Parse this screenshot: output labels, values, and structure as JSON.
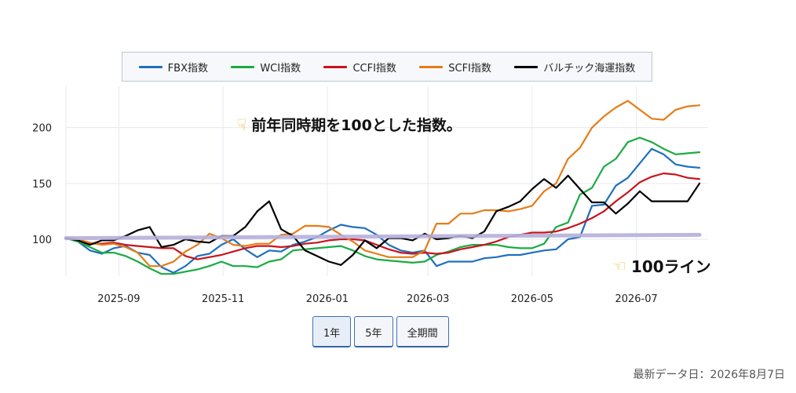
{
  "legend": {
    "items": [
      {
        "label": "FBX指数",
        "color": "#1f6fbf"
      },
      {
        "label": "WCI指数",
        "color": "#1aab43"
      },
      {
        "label": "CCFI指数",
        "color": "#c8141c"
      },
      {
        "label": "SCFI指数",
        "color": "#e57c16"
      },
      {
        "label": "バルチック海運指数",
        "color": "#000000"
      }
    ]
  },
  "annotations": {
    "top_text": "前年同時期を100とした指数。",
    "bottom_text": "100ライン",
    "hand_down_icon": "pointing-down-hand-icon",
    "hand_left_icon": "pointing-left-hand-icon"
  },
  "range_buttons": [
    {
      "label": "1年",
      "active": true
    },
    {
      "label": "5年",
      "active": false
    },
    {
      "label": "全期間",
      "active": false
    }
  ],
  "footer": {
    "updated_label": "最新データ日：2026年8月7日"
  },
  "chart_data": {
    "type": "line",
    "title": "",
    "xlabel": "",
    "ylabel": "",
    "x_start": "2025-08-01",
    "x_end": "2026-08-12",
    "xticks": [
      {
        "date": "2025-09-01",
        "label": "2025-09"
      },
      {
        "date": "2025-11-01",
        "label": "2025-11"
      },
      {
        "date": "2026-01-01",
        "label": "2026-01"
      },
      {
        "date": "2026-03-01",
        "label": "2026-03"
      },
      {
        "date": "2026-05-01",
        "label": "2026-05"
      },
      {
        "date": "2026-07-01",
        "label": "2026-07"
      }
    ],
    "yticks": [
      100,
      150,
      200
    ],
    "ylim": [
      67,
      237
    ],
    "grid": true,
    "legend_position": "top",
    "reference_line": {
      "y_start": 101,
      "y_end": 104,
      "color": "#b6b0dc"
    },
    "x": [
      "2025-08-01",
      "2025-08-08",
      "2025-08-15",
      "2025-08-22",
      "2025-08-29",
      "2025-09-05",
      "2025-09-12",
      "2025-09-19",
      "2025-09-26",
      "2025-10-03",
      "2025-10-10",
      "2025-10-17",
      "2025-10-24",
      "2025-10-31",
      "2025-11-07",
      "2025-11-14",
      "2025-11-21",
      "2025-11-28",
      "2025-12-05",
      "2025-12-12",
      "2025-12-19",
      "2025-12-26",
      "2026-01-02",
      "2026-01-09",
      "2026-01-16",
      "2026-01-23",
      "2026-01-30",
      "2026-02-06",
      "2026-02-13",
      "2026-02-20",
      "2026-02-27",
      "2026-03-06",
      "2026-03-13",
      "2026-03-20",
      "2026-03-27",
      "2026-04-03",
      "2026-04-10",
      "2026-04-17",
      "2026-04-24",
      "2026-05-01",
      "2026-05-08",
      "2026-05-15",
      "2026-05-22",
      "2026-05-29",
      "2026-06-05",
      "2026-06-12",
      "2026-06-19",
      "2026-06-26",
      "2026-07-03",
      "2026-07-10",
      "2026-07-17",
      "2026-07-24",
      "2026-07-31",
      "2026-08-07"
    ],
    "series": [
      {
        "name": "FBX指数",
        "color": "#1f6fbf",
        "values": [
          101,
          98,
          90,
          87,
          92,
          94,
          88,
          86,
          75,
          70,
          76,
          85,
          87,
          95,
          100,
          91,
          84,
          90,
          89,
          95,
          98,
          102,
          108,
          113,
          111,
          110,
          104,
          95,
          90,
          88,
          90,
          76,
          80,
          80,
          80,
          83,
          84,
          86,
          86,
          88,
          90,
          91,
          100,
          102,
          130,
          131,
          148,
          155,
          168,
          181,
          176,
          167,
          165,
          164
        ]
      },
      {
        "name": "WCI指数",
        "color": "#1aab43",
        "values": [
          101,
          98,
          93,
          88,
          88,
          85,
          80,
          74,
          69,
          69,
          71,
          73,
          76,
          80,
          76,
          76,
          75,
          80,
          82,
          90,
          91,
          92,
          93,
          94,
          90,
          85,
          82,
          81,
          80,
          79,
          80,
          86,
          89,
          93,
          95,
          95,
          95,
          93,
          92,
          92,
          96,
          111,
          115,
          140,
          146,
          165,
          172,
          187,
          191,
          187,
          181,
          176,
          177,
          178
        ]
      },
      {
        "name": "CCFI指数",
        "color": "#c8141c",
        "values": [
          101,
          100,
          96,
          96,
          97,
          95,
          94,
          93,
          92,
          92,
          85,
          82,
          84,
          86,
          89,
          92,
          94,
          94,
          93,
          94,
          96,
          97,
          99,
          100,
          100,
          99,
          95,
          91,
          88,
          87,
          88,
          87,
          88,
          91,
          93,
          95,
          98,
          102,
          104,
          106,
          106,
          107,
          110,
          114,
          119,
          125,
          134,
          142,
          151,
          156,
          159,
          158,
          155,
          154
        ]
      },
      {
        "name": "SCFI指数",
        "color": "#e57c16",
        "values": [
          101,
          100,
          97,
          95,
          96,
          93,
          88,
          76,
          76,
          80,
          89,
          95,
          105,
          101,
          95,
          94,
          96,
          96,
          104,
          105,
          112,
          112,
          111,
          104,
          98,
          90,
          87,
          84,
          84,
          84,
          90,
          114,
          114,
          123,
          123,
          126,
          126,
          125,
          127,
          130,
          143,
          150,
          172,
          182,
          200,
          210,
          218,
          224,
          216,
          208,
          207,
          216,
          219,
          220
        ]
      },
      {
        "name": "バルチック海運指数",
        "color": "#000000",
        "values": [
          101,
          99,
          95,
          99,
          99,
          103,
          108,
          111,
          93,
          95,
          100,
          98,
          97,
          103,
          103,
          111,
          125,
          134,
          109,
          103,
          90,
          85,
          80,
          77,
          86,
          99,
          92,
          101,
          101,
          99,
          105,
          100,
          101,
          103,
          101,
          107,
          125,
          129,
          134,
          145,
          154,
          146,
          157,
          145,
          133,
          133,
          123,
          132,
          143,
          134,
          134,
          134,
          134,
          150
        ]
      }
    ]
  }
}
